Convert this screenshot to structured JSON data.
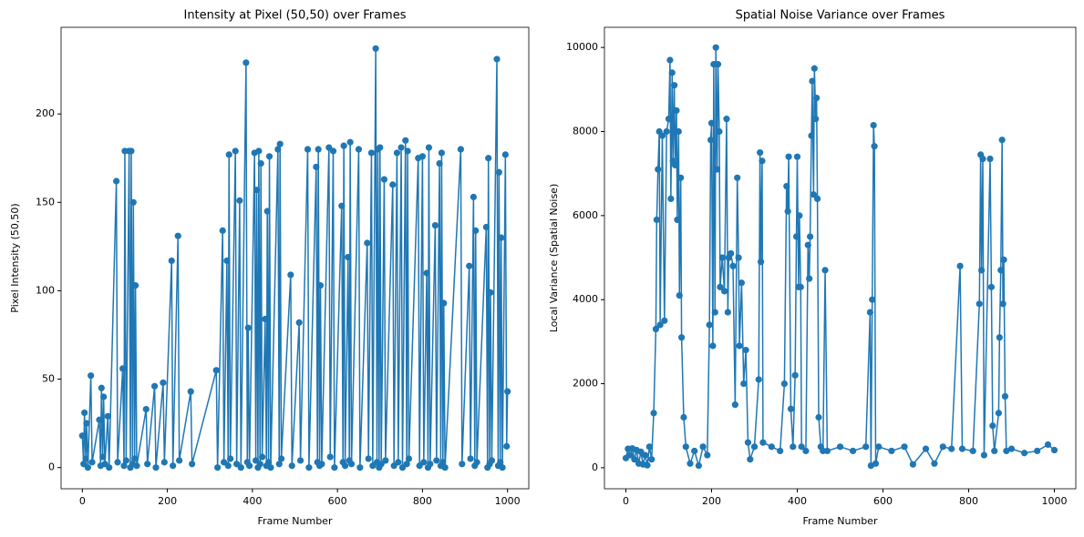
{
  "chart_data": [
    {
      "type": "line",
      "title": "Intensity at Pixel (50,50) over Frames",
      "x_label": "Frame Number",
      "y_label": "Pixel Intensity (50,50)",
      "color": "#1f77b4",
      "markers": true,
      "xlim": [
        -50,
        1050
      ],
      "ylim": [
        -12,
        249
      ],
      "xticks": [
        0,
        200,
        400,
        600,
        800,
        1000
      ],
      "yticks": [
        0,
        50,
        100,
        150,
        200
      ],
      "x": [
        0,
        3,
        5,
        8,
        10,
        13,
        20,
        23,
        40,
        43,
        45,
        48,
        50,
        53,
        60,
        63,
        80,
        83,
        95,
        98,
        100,
        103,
        110,
        113,
        115,
        118,
        120,
        123,
        125,
        128,
        150,
        153,
        170,
        173,
        190,
        193,
        210,
        213,
        225,
        228,
        255,
        258,
        315,
        318,
        330,
        333,
        340,
        343,
        345,
        348,
        360,
        363,
        370,
        373,
        385,
        388,
        390,
        393,
        405,
        408,
        410,
        413,
        415,
        418,
        420,
        423,
        430,
        433,
        435,
        438,
        440,
        443,
        460,
        463,
        465,
        468,
        490,
        493,
        510,
        513,
        530,
        533,
        550,
        553,
        555,
        558,
        560,
        563,
        580,
        583,
        590,
        593,
        610,
        613,
        615,
        618,
        625,
        628,
        630,
        633,
        650,
        653,
        670,
        673,
        680,
        683,
        690,
        693,
        695,
        698,
        700,
        703,
        710,
        713,
        730,
        733,
        740,
        743,
        750,
        753,
        760,
        763,
        765,
        768,
        790,
        793,
        800,
        803,
        810,
        813,
        815,
        818,
        830,
        833,
        840,
        843,
        845,
        848,
        850,
        853,
        890,
        893,
        910,
        913,
        920,
        923,
        925,
        928,
        950,
        953,
        955,
        958,
        960,
        963,
        975,
        978,
        980,
        983,
        985,
        988,
        995,
        998,
        1000
      ],
      "values": [
        18,
        2,
        31,
        5,
        25,
        0,
        52,
        3,
        27,
        1,
        45,
        6,
        40,
        2,
        29,
        0,
        162,
        3,
        56,
        1,
        179,
        4,
        179,
        0,
        179,
        2,
        150,
        5,
        103,
        1,
        33,
        2,
        46,
        0,
        48,
        3,
        117,
        1,
        131,
        4,
        43,
        2,
        55,
        0,
        134,
        3,
        117,
        1,
        177,
        5,
        179,
        2,
        151,
        0,
        229,
        3,
        79,
        1,
        178,
        4,
        157,
        0,
        179,
        2,
        172,
        6,
        84,
        1,
        145,
        3,
        176,
        0,
        180,
        2,
        183,
        5,
        109,
        1,
        82,
        4,
        180,
        0,
        170,
        3,
        180,
        1,
        103,
        2,
        181,
        6,
        179,
        0,
        148,
        3,
        182,
        1,
        119,
        4,
        184,
        2,
        180,
        0,
        127,
        5,
        178,
        1,
        237,
        3,
        180,
        0,
        181,
        2,
        163,
        4,
        160,
        1,
        178,
        3,
        181,
        0,
        185,
        2,
        179,
        5,
        175,
        1,
        176,
        3,
        110,
        0,
        181,
        2,
        137,
        4,
        172,
        1,
        178,
        3,
        93,
        0,
        180,
        2,
        114,
        5,
        153,
        1,
        134,
        3,
        136,
        0,
        175,
        2,
        99,
        4,
        231,
        1,
        167,
        3,
        130,
        0,
        177,
        12,
        43
      ]
    },
    {
      "type": "line",
      "title": "Spatial Noise Variance over Frames",
      "x_label": "Frame Number",
      "y_label": "Local Variance (Spatial Noise)",
      "color": "#1f77b4",
      "markers": true,
      "xlim": [
        -50,
        1050
      ],
      "ylim": [
        -500,
        10480
      ],
      "xticks": [
        0,
        200,
        400,
        600,
        800,
        1000
      ],
      "yticks": [
        0,
        2000,
        4000,
        6000,
        8000,
        10000
      ],
      "x": [
        0,
        5,
        10,
        15,
        20,
        25,
        30,
        35,
        40,
        45,
        50,
        55,
        60,
        65,
        70,
        72,
        75,
        78,
        80,
        85,
        90,
        95,
        100,
        103,
        105,
        108,
        110,
        113,
        115,
        118,
        120,
        123,
        125,
        128,
        130,
        135,
        140,
        150,
        160,
        170,
        180,
        190,
        195,
        198,
        200,
        203,
        205,
        208,
        210,
        213,
        215,
        218,
        220,
        225,
        230,
        235,
        238,
        240,
        245,
        250,
        255,
        260,
        263,
        265,
        270,
        275,
        280,
        285,
        290,
        300,
        310,
        313,
        315,
        318,
        320,
        340,
        360,
        370,
        375,
        378,
        380,
        385,
        390,
        395,
        398,
        400,
        403,
        405,
        408,
        410,
        420,
        425,
        428,
        430,
        433,
        435,
        438,
        440,
        443,
        445,
        447,
        450,
        455,
        460,
        465,
        470,
        500,
        530,
        560,
        570,
        572,
        575,
        578,
        580,
        583,
        590,
        620,
        650,
        670,
        700,
        720,
        740,
        760,
        780,
        785,
        810,
        825,
        828,
        830,
        833,
        836,
        850,
        853,
        856,
        860,
        870,
        872,
        875,
        878,
        880,
        882,
        885,
        888,
        900,
        930,
        960,
        985,
        1000
      ],
      "values": [
        230,
        450,
        300,
        460,
        200,
        420,
        100,
        380,
        80,
        300,
        60,
        500,
        200,
        1300,
        3300,
        5900,
        7100,
        8000,
        3400,
        7900,
        3500,
        8000,
        8300,
        9700,
        6400,
        9400,
        7300,
        9100,
        7200,
        8500,
        5900,
        8000,
        4100,
        6900,
        3100,
        1200,
        500,
        100,
        400,
        50,
        500,
        300,
        3400,
        7800,
        8200,
        2900,
        9600,
        3700,
        10000,
        7100,
        9600,
        8000,
        4300,
        5000,
        4200,
        8300,
        3700,
        5000,
        5100,
        4800,
        1500,
        6900,
        5000,
        2900,
        4400,
        2000,
        2800,
        600,
        200,
        500,
        2100,
        7500,
        4900,
        7300,
        600,
        500,
        400,
        2000,
        6700,
        6100,
        7400,
        1400,
        500,
        2200,
        5500,
        7400,
        4300,
        6000,
        4300,
        500,
        400,
        5300,
        4500,
        5500,
        7900,
        9200,
        6500,
        9500,
        8300,
        8800,
        6400,
        1200,
        500,
        400,
        4700,
        400,
        500,
        400,
        500,
        3700,
        50,
        4000,
        8150,
        7650,
        100,
        500,
        400,
        500,
        80,
        450,
        100,
        500,
        450,
        4800,
        450,
        400,
        3900,
        7450,
        4700,
        7350,
        300,
        7350,
        4300,
        1000,
        400,
        1300,
        3100,
        4700,
        7800,
        3900,
        4950,
        1700,
        400,
        450,
        350,
        400,
        550,
        420
      ]
    }
  ]
}
